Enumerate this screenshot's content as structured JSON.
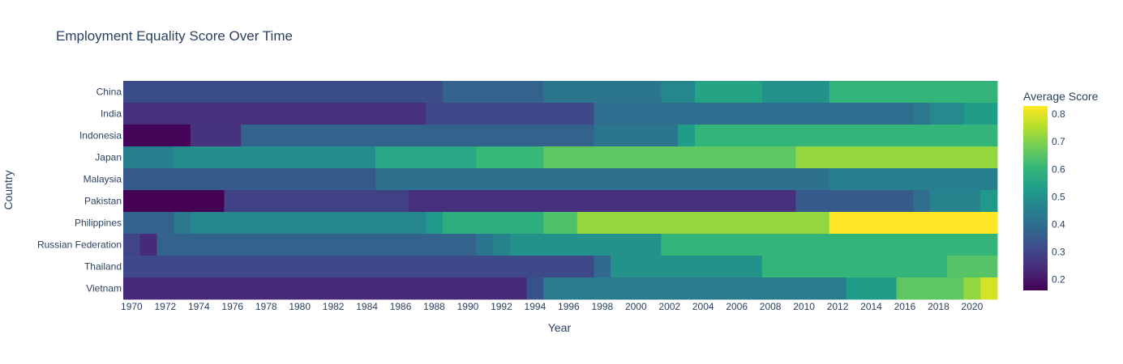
{
  "chart_data": {
    "type": "heatmap",
    "title": "Employment Equality Score Over Time",
    "xlabel": "Year",
    "ylabel": "Country",
    "colorbar_title": "Average Score",
    "colorscale": "Viridis",
    "zlim": [
      0.16,
      0.83
    ],
    "colorbar_ticks": [
      "0.2",
      "0.3",
      "0.4",
      "0.5",
      "0.6",
      "0.7",
      "0.8"
    ],
    "x_tick_labels": [
      "1970",
      "1972",
      "1974",
      "1976",
      "1978",
      "1980",
      "1982",
      "1984",
      "1986",
      "1988",
      "1990",
      "1992",
      "1994",
      "1996",
      "1998",
      "2000",
      "2002",
      "2004",
      "2006",
      "2008",
      "2010",
      "2012",
      "2014",
      "2016",
      "2018",
      "2020"
    ],
    "year_range": [
      1970,
      2021
    ],
    "rows": [
      {
        "country": "China",
        "segments": [
          {
            "from": 1970,
            "to": 1988,
            "value": 0.32
          },
          {
            "from": 1989,
            "to": 1994,
            "value": 0.37
          },
          {
            "from": 1995,
            "to": 2001,
            "value": 0.42
          },
          {
            "from": 2002,
            "to": 2003,
            "value": 0.47
          },
          {
            "from": 2004,
            "to": 2007,
            "value": 0.55
          },
          {
            "from": 2008,
            "to": 2011,
            "value": 0.5
          },
          {
            "from": 2012,
            "to": 2021,
            "value": 0.6
          }
        ]
      },
      {
        "country": "India",
        "segments": [
          {
            "from": 1970,
            "to": 1987,
            "value": 0.25
          },
          {
            "from": 1988,
            "to": 1997,
            "value": 0.31
          },
          {
            "from": 1998,
            "to": 2016,
            "value": 0.4
          },
          {
            "from": 2017,
            "to": 2017,
            "value": 0.43
          },
          {
            "from": 2018,
            "to": 2019,
            "value": 0.48
          },
          {
            "from": 2020,
            "to": 2021,
            "value": 0.53
          }
        ]
      },
      {
        "country": "Indonesia",
        "segments": [
          {
            "from": 1970,
            "to": 1973,
            "value": 0.17
          },
          {
            "from": 1974,
            "to": 1976,
            "value": 0.26
          },
          {
            "from": 1977,
            "to": 1997,
            "value": 0.37
          },
          {
            "from": 1998,
            "to": 2002,
            "value": 0.42
          },
          {
            "from": 2003,
            "to": 2003,
            "value": 0.53
          },
          {
            "from": 2004,
            "to": 2021,
            "value": 0.6
          }
        ]
      },
      {
        "country": "Japan",
        "segments": [
          {
            "from": 1970,
            "to": 1972,
            "value": 0.45
          },
          {
            "from": 1973,
            "to": 1984,
            "value": 0.49
          },
          {
            "from": 1985,
            "to": 1990,
            "value": 0.56
          },
          {
            "from": 1991,
            "to": 1994,
            "value": 0.61
          },
          {
            "from": 1995,
            "to": 2009,
            "value": 0.66
          },
          {
            "from": 2010,
            "to": 2021,
            "value": 0.72
          }
        ]
      },
      {
        "country": "Malaysia",
        "segments": [
          {
            "from": 1970,
            "to": 1984,
            "value": 0.35
          },
          {
            "from": 1985,
            "to": 2011,
            "value": 0.41
          },
          {
            "from": 2012,
            "to": 2021,
            "value": 0.45
          }
        ]
      },
      {
        "country": "Pakistan",
        "segments": [
          {
            "from": 1970,
            "to": 1975,
            "value": 0.16
          },
          {
            "from": 1976,
            "to": 1986,
            "value": 0.29
          },
          {
            "from": 1987,
            "to": 2009,
            "value": 0.25
          },
          {
            "from": 2010,
            "to": 2016,
            "value": 0.35
          },
          {
            "from": 2017,
            "to": 2017,
            "value": 0.4
          },
          {
            "from": 2018,
            "to": 2020,
            "value": 0.46
          },
          {
            "from": 2021,
            "to": 2021,
            "value": 0.52
          }
        ]
      },
      {
        "country": "Philippines",
        "segments": [
          {
            "from": 1970,
            "to": 1972,
            "value": 0.37
          },
          {
            "from": 1973,
            "to": 1973,
            "value": 0.43
          },
          {
            "from": 1974,
            "to": 1987,
            "value": 0.47
          },
          {
            "from": 1988,
            "to": 1988,
            "value": 0.52
          },
          {
            "from": 1989,
            "to": 1994,
            "value": 0.58
          },
          {
            "from": 1995,
            "to": 1996,
            "value": 0.64
          },
          {
            "from": 1997,
            "to": 2011,
            "value": 0.72
          },
          {
            "from": 2012,
            "to": 2021,
            "value": 0.83
          }
        ]
      },
      {
        "country": "Russian Federation",
        "segments": [
          {
            "from": 1970,
            "to": 1970,
            "value": 0.3
          },
          {
            "from": 1971,
            "to": 1971,
            "value": 0.24
          },
          {
            "from": 1972,
            "to": 1990,
            "value": 0.37
          },
          {
            "from": 1991,
            "to": 1991,
            "value": 0.42
          },
          {
            "from": 1992,
            "to": 1992,
            "value": 0.46
          },
          {
            "from": 1993,
            "to": 2001,
            "value": 0.5
          },
          {
            "from": 2002,
            "to": 2021,
            "value": 0.6
          }
        ]
      },
      {
        "country": "Thailand",
        "segments": [
          {
            "from": 1970,
            "to": 1997,
            "value": 0.31
          },
          {
            "from": 1998,
            "to": 1998,
            "value": 0.39
          },
          {
            "from": 1999,
            "to": 2007,
            "value": 0.5
          },
          {
            "from": 2008,
            "to": 2018,
            "value": 0.6
          },
          {
            "from": 2019,
            "to": 2021,
            "value": 0.65
          }
        ]
      },
      {
        "country": "Vietnam",
        "segments": [
          {
            "from": 1970,
            "to": 1993,
            "value": 0.24
          },
          {
            "from": 1994,
            "to": 1994,
            "value": 0.33
          },
          {
            "from": 1995,
            "to": 2012,
            "value": 0.44
          },
          {
            "from": 2013,
            "to": 2015,
            "value": 0.53
          },
          {
            "from": 2016,
            "to": 2019,
            "value": 0.66
          },
          {
            "from": 2020,
            "to": 2020,
            "value": 0.72
          },
          {
            "from": 2021,
            "to": 2021,
            "value": 0.79
          }
        ]
      }
    ]
  }
}
